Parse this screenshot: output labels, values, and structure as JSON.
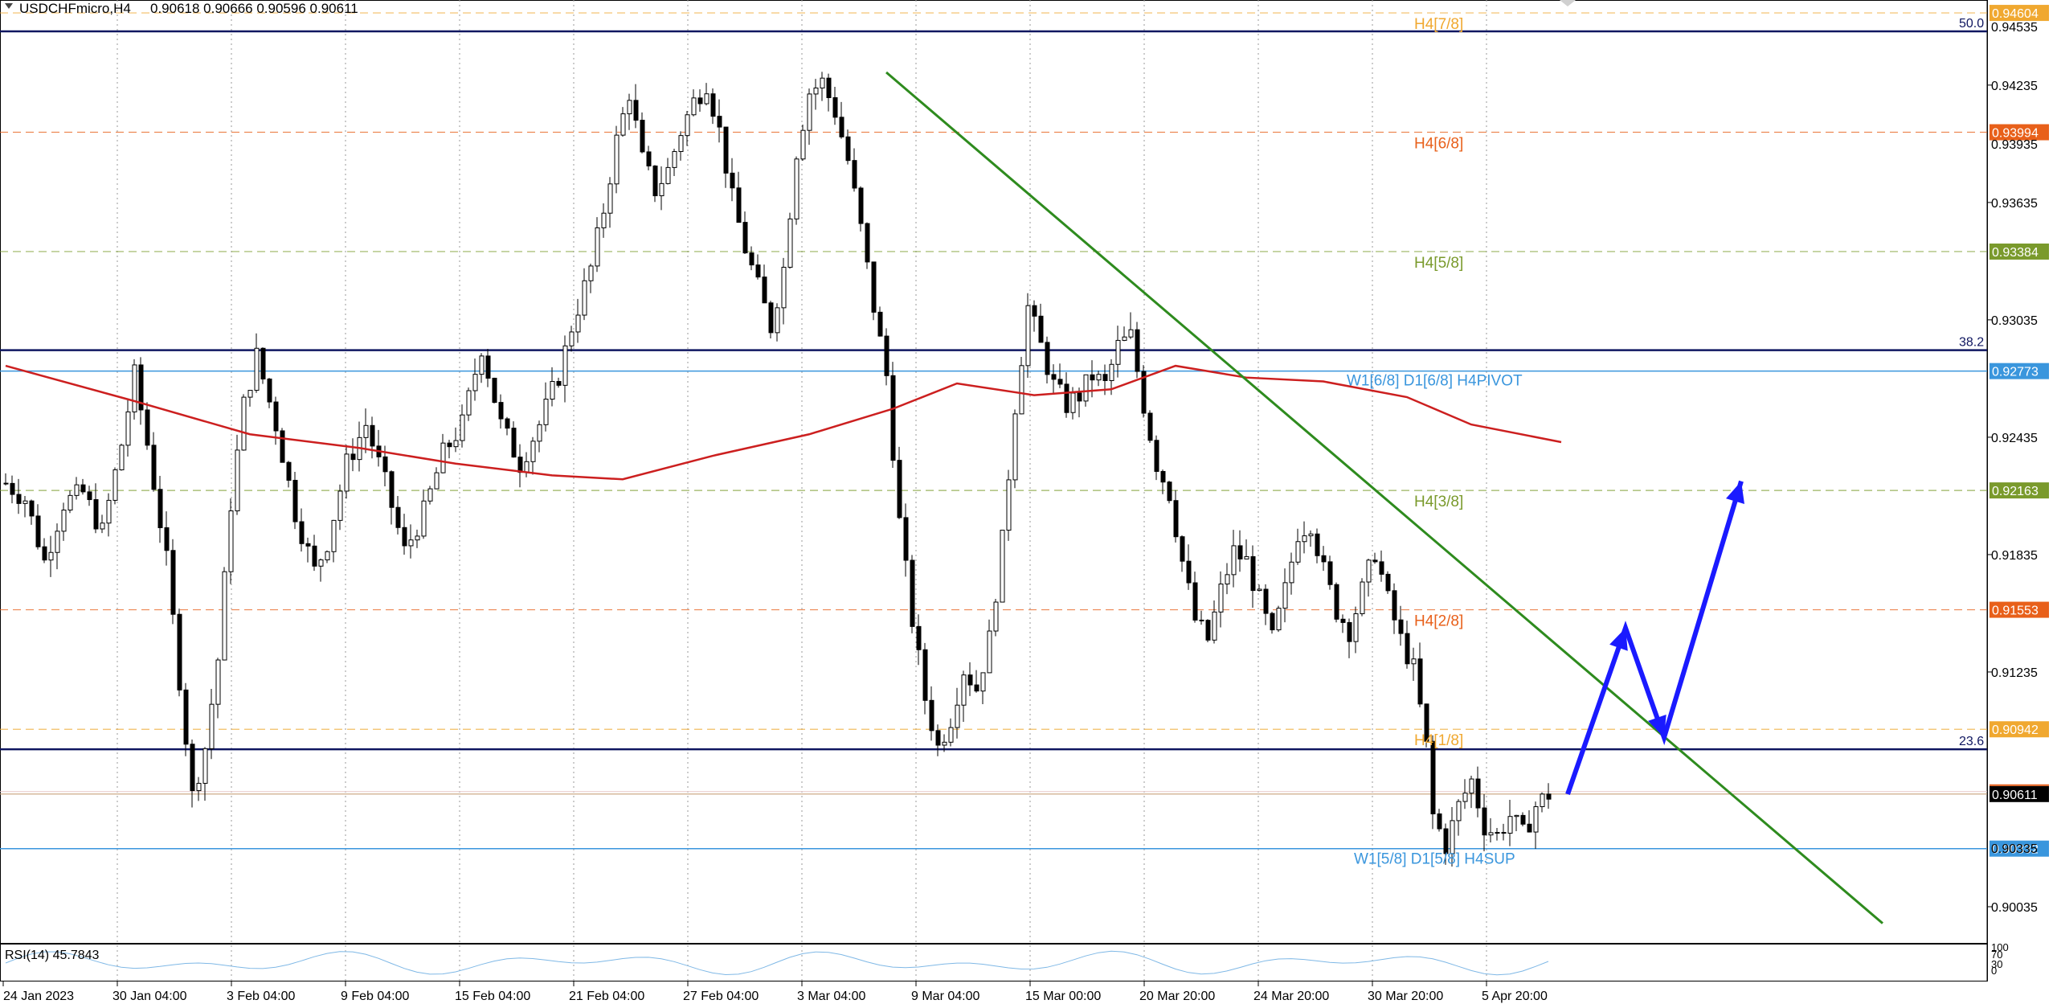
{
  "header": {
    "symbol_timeframe": "USDCHFmicro,H4",
    "ohlc": "0.90618 0.90666 0.90596 0.90611",
    "values": [
      "0.90618",
      "0.90666",
      "0.90596",
      "0.90611"
    ]
  },
  "chart_data": {
    "type": "candlestick",
    "symbol": "USDCHFmicro",
    "timeframe": "H4",
    "ylim": [
      0.8985,
      0.9467
    ],
    "price_ticks": [
      "0.94235",
      "0.93635",
      "0.93035",
      "0.92435",
      "0.91835",
      "0.91235",
      "0.90035"
    ],
    "partial_ticks": [
      "0.94535",
      "0.93935",
      "0.90335"
    ],
    "time_labels": [
      "24 Jan 2023",
      "30 Jan 04:00",
      "3 Feb 04:00",
      "9 Feb 04:00",
      "15 Feb 04:00",
      "21 Feb 04:00",
      "27 Feb 04:00",
      "3 Mar 04:00",
      "9 Mar 04:00",
      "15 Mar 00:00",
      "20 Mar 20:00",
      "24 Mar 20:00",
      "30 Mar 20:00",
      "5 Apr 20:00"
    ],
    "murrey_levels": [
      {
        "label": "H4[7/8]",
        "price": 0.94604,
        "tag": "0.94604",
        "color": "#f0a830"
      },
      {
        "label": "H4[6/8]",
        "price": 0.93994,
        "tag": "0.93994",
        "color": "#e8601a"
      },
      {
        "label": "H4[5/8]",
        "price": 0.93384,
        "tag": "0.93384",
        "color": "#7a9a2c"
      },
      {
        "label": "H4[3/8]",
        "price": 0.92163,
        "tag": "0.92163",
        "color": "#7a9a2c"
      },
      {
        "label": "H4[2/8]",
        "price": 0.91553,
        "tag": "0.91553",
        "color": "#e8601a"
      },
      {
        "label": "H4[1/8]",
        "price": 0.90942,
        "tag": "0.90942",
        "color": "#f0a830"
      }
    ],
    "pivot_levels": [
      {
        "label": "W1[6/8] D1[6/8] H4PIVOT",
        "price": 0.92773,
        "tag": "0.92773",
        "color": "#3a96dd"
      },
      {
        "label": "W1[5/8] D1[5/8] H4SUP",
        "price": 0.90332,
        "tag": "0.90332",
        "color": "#3a96dd"
      }
    ],
    "fib_levels": [
      {
        "label": "50.0",
        "price": 0.9451
      },
      {
        "label": "38.2",
        "price": 0.9288
      },
      {
        "label": "23.6",
        "price": 0.9084
      }
    ],
    "current_price": {
      "price": 0.90611,
      "tag": "0.90611"
    },
    "close_path": [
      [
        0,
        0.922
      ],
      [
        3,
        0.9212
      ],
      [
        6,
        0.918
      ],
      [
        9,
        0.921
      ],
      [
        12,
        0.9215
      ],
      [
        15,
        0.9195
      ],
      [
        18,
        0.924
      ],
      [
        20,
        0.9275
      ],
      [
        22,
        0.924
      ],
      [
        25,
        0.918
      ],
      [
        27,
        0.912
      ],
      [
        29,
        0.906
      ],
      [
        31,
        0.9085
      ],
      [
        33,
        0.913
      ],
      [
        35,
        0.921
      ],
      [
        37,
        0.926
      ],
      [
        39,
        0.9285
      ],
      [
        42,
        0.925
      ],
      [
        45,
        0.9205
      ],
      [
        48,
        0.9175
      ],
      [
        50,
        0.919
      ],
      [
        53,
        0.923
      ],
      [
        56,
        0.925
      ],
      [
        59,
        0.922
      ],
      [
        62,
        0.9185
      ],
      [
        65,
        0.9205
      ],
      [
        68,
        0.9235
      ],
      [
        71,
        0.925
      ],
      [
        74,
        0.929
      ],
      [
        77,
        0.925
      ],
      [
        80,
        0.923
      ],
      [
        83,
        0.925
      ],
      [
        86,
        0.9275
      ],
      [
        88,
        0.93
      ],
      [
        91,
        0.933
      ],
      [
        93,
        0.936
      ],
      [
        95,
        0.9395
      ],
      [
        97,
        0.942
      ],
      [
        99,
        0.9385
      ],
      [
        101,
        0.937
      ],
      [
        103,
        0.938
      ],
      [
        105,
        0.94
      ],
      [
        107,
        0.9415
      ],
      [
        109,
        0.9425
      ],
      [
        111,
        0.94
      ],
      [
        113,
        0.9365
      ],
      [
        115,
        0.934
      ],
      [
        117,
        0.932
      ],
      [
        119,
        0.93
      ],
      [
        121,
        0.933
      ],
      [
        123,
        0.939
      ],
      [
        125,
        0.942
      ],
      [
        127,
        0.9425
      ],
      [
        129,
        0.941
      ],
      [
        131,
        0.9385
      ],
      [
        133,
        0.935
      ],
      [
        135,
        0.931
      ],
      [
        137,
        0.9275
      ],
      [
        139,
        0.92
      ],
      [
        141,
        0.915
      ],
      [
        143,
        0.911
      ],
      [
        145,
        0.9085
      ],
      [
        147,
        0.91
      ],
      [
        149,
        0.9125
      ],
      [
        151,
        0.9115
      ],
      [
        153,
        0.914
      ],
      [
        155,
        0.919
      ],
      [
        157,
        0.926
      ],
      [
        159,
        0.931
      ],
      [
        161,
        0.929
      ],
      [
        163,
        0.927
      ],
      [
        165,
        0.926
      ],
      [
        167,
        0.9265
      ],
      [
        169,
        0.9275
      ],
      [
        171,
        0.927
      ],
      [
        173,
        0.929
      ],
      [
        175,
        0.9295
      ],
      [
        177,
        0.926
      ],
      [
        179,
        0.923
      ],
      [
        181,
        0.9215
      ],
      [
        183,
        0.918
      ],
      [
        185,
        0.915
      ],
      [
        187,
        0.914
      ],
      [
        189,
        0.9165
      ],
      [
        191,
        0.9185
      ],
      [
        193,
        0.918
      ],
      [
        195,
        0.916
      ],
      [
        197,
        0.914
      ],
      [
        199,
        0.9165
      ],
      [
        201,
        0.9195
      ],
      [
        203,
        0.92
      ],
      [
        205,
        0.9175
      ],
      [
        207,
        0.9155
      ],
      [
        209,
        0.9145
      ],
      [
        211,
        0.9165
      ],
      [
        213,
        0.9185
      ],
      [
        215,
        0.916
      ],
      [
        217,
        0.914
      ],
      [
        219,
        0.9125
      ],
      [
        221,
        0.9085
      ],
      [
        222,
        0.905
      ],
      [
        224,
        0.9035
      ],
      [
        226,
        0.9055
      ],
      [
        228,
        0.9068
      ],
      [
        230,
        0.9045
      ],
      [
        232,
        0.904
      ],
      [
        234,
        0.905
      ],
      [
        236,
        0.904
      ],
      [
        238,
        0.9055
      ],
      [
        240,
        0.9061
      ]
    ],
    "ma_path": [
      [
        0,
        0.928
      ],
      [
        20,
        0.9262
      ],
      [
        38,
        0.9245
      ],
      [
        55,
        0.9238
      ],
      [
        70,
        0.923
      ],
      [
        85,
        0.9224
      ],
      [
        96,
        0.9222
      ],
      [
        110,
        0.9234
      ],
      [
        125,
        0.9245
      ],
      [
        138,
        0.9258
      ],
      [
        148,
        0.9271
      ],
      [
        160,
        0.9265
      ],
      [
        172,
        0.9268
      ],
      [
        182,
        0.928
      ],
      [
        193,
        0.9274
      ],
      [
        205,
        0.9272
      ],
      [
        218,
        0.9264
      ],
      [
        228,
        0.925
      ],
      [
        242,
        0.9241
      ]
    ],
    "trendline": {
      "from": [
        137,
        0.943
      ],
      "to": [
        292,
        0.8995
      ],
      "color": "#2e8b1e"
    },
    "forecast_arrow": {
      "points": [
        [
          243,
          0.9061
        ],
        [
          252,
          0.9146
        ],
        [
          258,
          0.909
        ],
        [
          270,
          0.9221
        ]
      ],
      "color": "#1a1aff"
    }
  },
  "rsi": {
    "label": "RSI(14) 45.7843",
    "levels": [
      "100",
      "70",
      "30",
      "0"
    ]
  }
}
